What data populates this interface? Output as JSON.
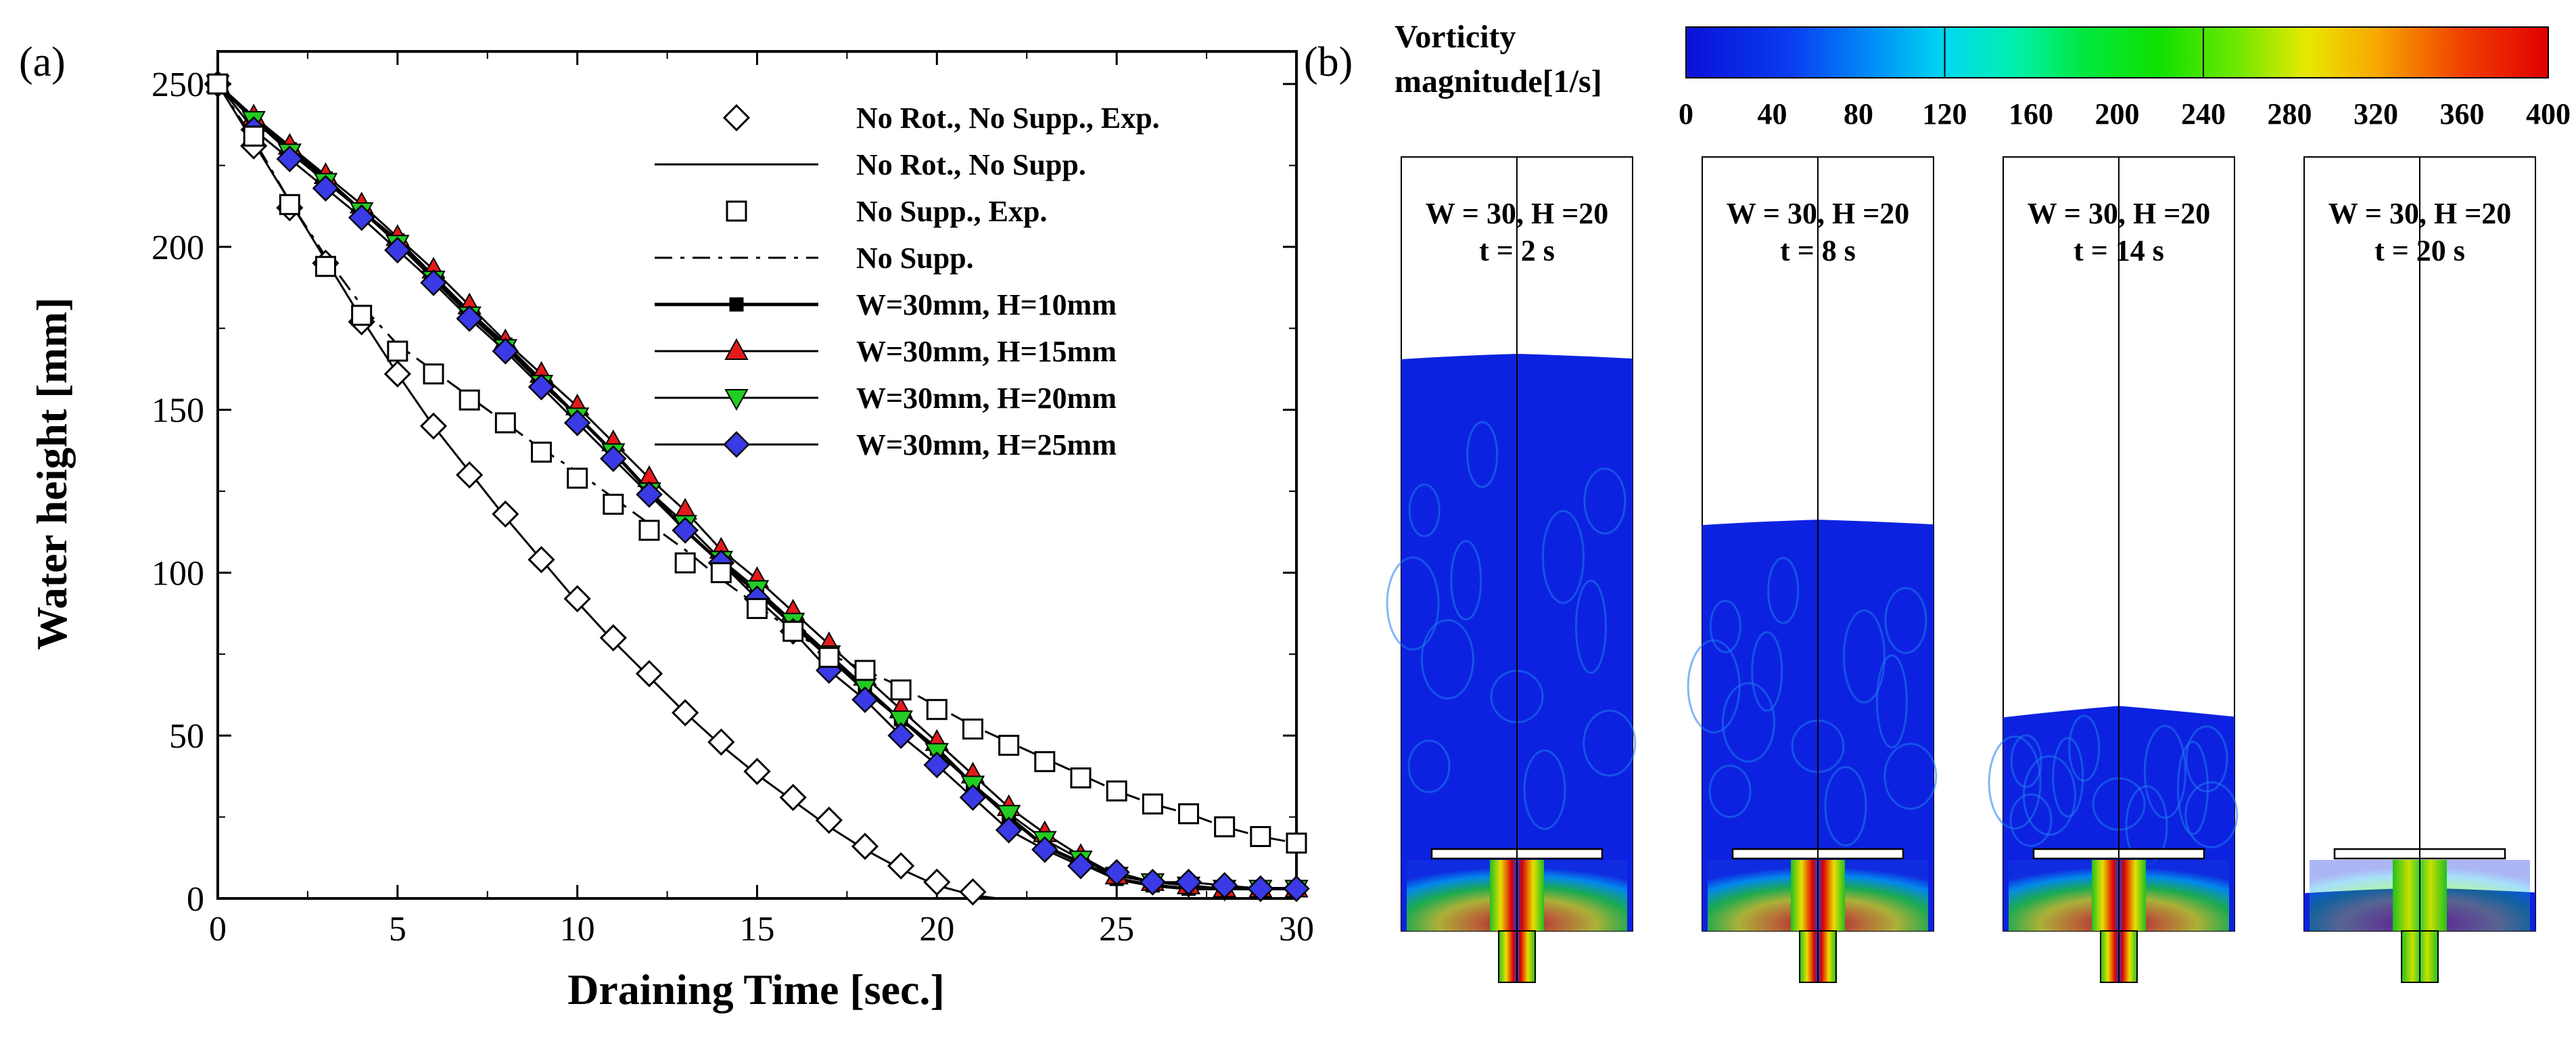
{
  "panel_a": {
    "label": "(a)",
    "chart_data": {
      "type": "line",
      "title": "",
      "xlabel": "Draining Time [sec.]",
      "ylabel": "Water height [mm]",
      "xlim": [
        0,
        30
      ],
      "ylim": [
        0,
        260
      ],
      "xticks": [
        "0",
        "5",
        "10",
        "15",
        "20",
        "25",
        "30"
      ],
      "yticks": [
        "0",
        "50",
        "100",
        "150",
        "200",
        "250"
      ],
      "legend_position": "top-right",
      "series": [
        {
          "name": "No Rot., No Supp., Exp.",
          "marker": "diamond-open",
          "line": "none",
          "color": "#000000",
          "x": [
            0,
            1,
            2,
            3,
            4,
            5,
            6,
            7,
            8,
            9,
            10,
            11,
            12,
            13,
            14,
            15,
            16,
            17,
            18,
            19,
            20,
            21
          ],
          "y": [
            250,
            231,
            212,
            195,
            177,
            161,
            145,
            130,
            118,
            104,
            92,
            80,
            69,
            57,
            48,
            39,
            31,
            24,
            16,
            10,
            5,
            2
          ]
        },
        {
          "name": "No Rot., No Supp.",
          "marker": "none",
          "line": "solid",
          "color": "#000000",
          "x": [
            0,
            1,
            2,
            3,
            4,
            5,
            6,
            7,
            8,
            9,
            10,
            11,
            12,
            13,
            14,
            15,
            16,
            17,
            18,
            19,
            20,
            21,
            21.7
          ],
          "y": [
            250,
            232,
            214,
            196,
            178,
            161,
            145,
            131,
            117,
            104,
            91,
            79,
            68,
            57,
            47,
            38,
            30,
            22,
            15,
            9,
            4,
            1,
            0
          ]
        },
        {
          "name": "No Supp., Exp.",
          "marker": "square-open",
          "line": "none",
          "color": "#000000",
          "x": [
            0,
            1,
            2,
            3,
            4,
            5,
            6,
            7,
            8,
            9,
            10,
            11,
            12,
            13,
            14,
            15,
            16,
            17,
            18,
            19,
            20,
            21,
            22,
            23,
            24,
            25,
            26,
            27,
            28,
            29,
            30
          ],
          "y": [
            250,
            234,
            213,
            194,
            179,
            168,
            161,
            153,
            146,
            137,
            129,
            121,
            113,
            103,
            100,
            89,
            82,
            74,
            70,
            64,
            58,
            52,
            47,
            42,
            37,
            33,
            29,
            26,
            22,
            19,
            17
          ]
        },
        {
          "name": "No Supp.",
          "marker": "none",
          "line": "dashdot",
          "color": "#000000",
          "x": [
            0,
            1,
            2,
            3,
            4,
            5,
            6,
            7,
            8,
            9,
            10,
            11,
            12,
            13,
            14,
            15,
            16,
            17,
            18,
            19,
            20,
            21,
            22,
            23,
            24,
            25,
            26,
            27,
            28,
            29,
            30
          ],
          "y": [
            250,
            233,
            214,
            197,
            182,
            170,
            162,
            154,
            146,
            138,
            131,
            123,
            115,
            107,
            98,
            90,
            82,
            75,
            70,
            65,
            59,
            53,
            48,
            43,
            38,
            33,
            29,
            26,
            22,
            19,
            17
          ]
        },
        {
          "name": "W=30mm, H=10mm",
          "marker": "square-filled",
          "line": "solid-bold",
          "color": "#000000",
          "x": [
            0,
            1,
            2,
            3,
            4,
            5,
            6,
            7,
            8,
            9,
            10,
            11,
            12,
            13,
            14,
            15,
            16,
            17,
            18,
            19,
            20,
            21,
            22,
            23,
            24,
            25,
            26,
            27,
            28,
            29,
            30
          ],
          "y": [
            250,
            239,
            230,
            221,
            211,
            202,
            191,
            180,
            170,
            159,
            148,
            137,
            125,
            113,
            103,
            94,
            84,
            74,
            64,
            55,
            46,
            35,
            25,
            16,
            11,
            6,
            4,
            3,
            3,
            3,
            3
          ]
        },
        {
          "name": "W=30mm, H=15mm",
          "marker": "triangle-up",
          "line": "solid",
          "color": "#e51a1a",
          "x": [
            0,
            1,
            2,
            3,
            4,
            5,
            6,
            7,
            8,
            9,
            10,
            11,
            12,
            13,
            14,
            15,
            16,
            17,
            18,
            19,
            20,
            21,
            22,
            23,
            24,
            25,
            26,
            27,
            28,
            29,
            30
          ],
          "y": [
            250,
            240,
            231,
            222,
            213,
            203,
            193,
            182,
            171,
            161,
            151,
            140,
            129,
            119,
            107,
            98,
            88,
            78,
            68,
            58,
            48,
            38,
            28,
            20,
            13,
            7,
            5,
            4,
            3,
            3,
            3
          ]
        },
        {
          "name": "W=30mm, H=20mm",
          "marker": "triangle-down",
          "line": "solid",
          "color": "#22cc22",
          "x": [
            0,
            1,
            2,
            3,
            4,
            5,
            6,
            7,
            8,
            9,
            10,
            11,
            12,
            13,
            14,
            15,
            16,
            17,
            18,
            19,
            20,
            21,
            22,
            23,
            24,
            25,
            26,
            27,
            28,
            29,
            30
          ],
          "y": [
            250,
            239,
            229,
            220,
            211,
            201,
            190,
            179,
            169,
            158,
            148,
            137,
            125,
            115,
            104,
            95,
            85,
            75,
            65,
            55,
            45,
            35,
            26,
            18,
            12,
            7,
            5,
            4,
            3,
            3,
            3
          ]
        },
        {
          "name": "W=30mm, H=25mm",
          "marker": "diamond-filled",
          "line": "solid",
          "color": "#3a3ae6",
          "x": [
            0,
            1,
            2,
            3,
            4,
            5,
            6,
            7,
            8,
            9,
            10,
            11,
            12,
            13,
            14,
            15,
            16,
            17,
            18,
            19,
            20,
            21,
            22,
            23,
            24,
            25,
            26,
            27,
            28,
            29,
            30
          ],
          "y": [
            250,
            236,
            227,
            218,
            209,
            199,
            189,
            178,
            168,
            157,
            146,
            135,
            124,
            113,
            103,
            92,
            82,
            70,
            61,
            50,
            41,
            31,
            21,
            15,
            10,
            8,
            5,
            5,
            4,
            3,
            3
          ]
        }
      ]
    }
  },
  "panel_b": {
    "label": "(b)",
    "colorbar": {
      "title_line1": "Vorticity",
      "title_line2": "magnitude[1/s]",
      "ticks": [
        "0",
        "40",
        "80",
        "120",
        "160",
        "200",
        "240",
        "280",
        "320",
        "360",
        "400"
      ],
      "min": 0,
      "max": 400
    },
    "snapshots": [
      {
        "title": "W = 30, H =20",
        "time": "t = 2 s",
        "water_level": 173
      },
      {
        "title": "W = 30, H =20",
        "time": "t = 8 s",
        "water_level": 123
      },
      {
        "title": "W = 30, H =20",
        "time": "t = 14 s",
        "water_level": 65
      },
      {
        "title": "W = 30, H =20",
        "time": "t = 20 s",
        "water_level": 12
      }
    ],
    "colors": {
      "low": "#0a1ee6",
      "mid": "#00e000",
      "high": "#e60000"
    }
  }
}
